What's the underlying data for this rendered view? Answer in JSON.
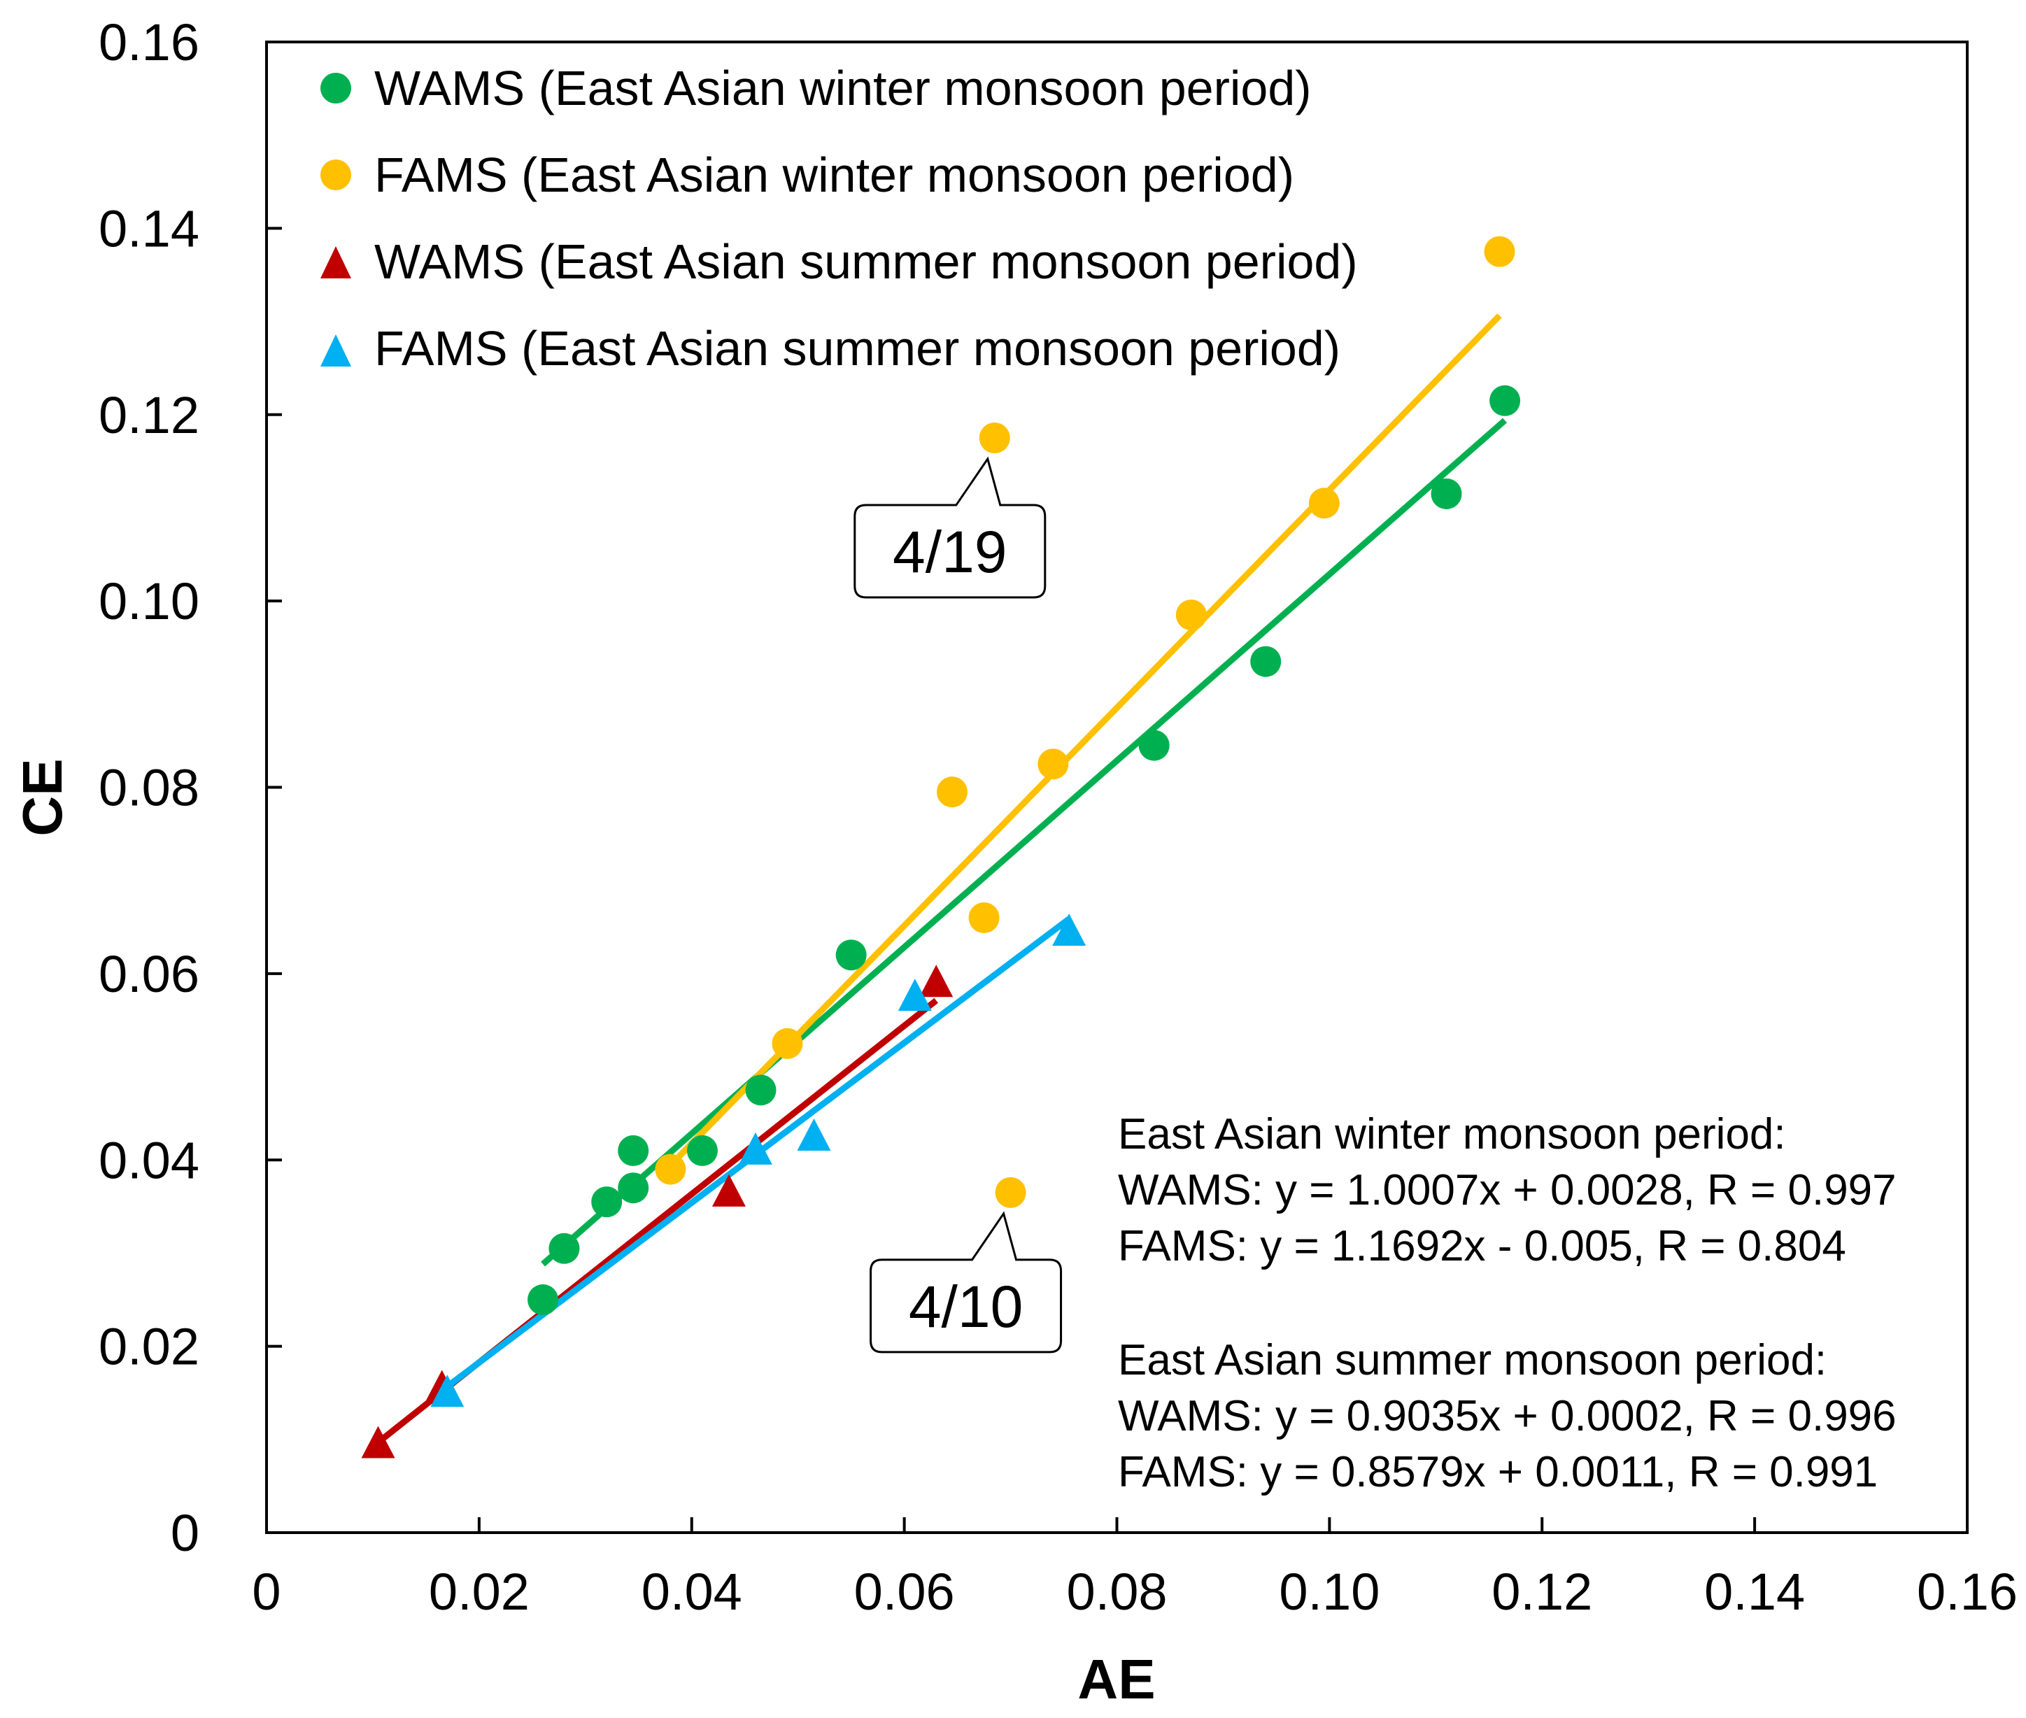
{
  "chart_data": {
    "type": "scatter",
    "title": "",
    "xlabel": "AE",
    "ylabel": "CE",
    "xlim": [
      0,
      0.16
    ],
    "ylim": [
      0,
      0.16
    ],
    "xticks": [
      "0",
      "0.02",
      "0.04",
      "0.06",
      "0.08",
      "0.10",
      "0.12",
      "0.14",
      "0.16"
    ],
    "yticks": [
      "0",
      "0.02",
      "0.04",
      "0.06",
      "0.08",
      "0.10",
      "0.12",
      "0.14",
      "0.16"
    ],
    "grid": false,
    "legend_position": "top-left",
    "series": [
      {
        "name": "WAMS (East Asian winter monsoon period)",
        "marker": "circle",
        "color": "#00B050",
        "points": [
          [
            0.026,
            0.025
          ],
          [
            0.028,
            0.0305
          ],
          [
            0.032,
            0.0355
          ],
          [
            0.0345,
            0.037
          ],
          [
            0.0345,
            0.041
          ],
          [
            0.041,
            0.041
          ],
          [
            0.0465,
            0.0475
          ],
          [
            0.055,
            0.062
          ],
          [
            0.0835,
            0.0845
          ],
          [
            0.094,
            0.0935
          ],
          [
            0.111,
            0.1115
          ],
          [
            0.1165,
            0.1215
          ]
        ],
        "fit": {
          "slope": 1.0007,
          "intercept": 0.0028,
          "x_range": [
            0.026,
            0.1165
          ]
        }
      },
      {
        "name": "FAMS (East Asian winter monsoon period)",
        "marker": "circle",
        "color": "#FFC000",
        "points": [
          [
            0.038,
            0.039
          ],
          [
            0.049,
            0.0525
          ],
          [
            0.0645,
            0.0795
          ],
          [
            0.0675,
            0.066
          ],
          [
            0.0685,
            0.1175
          ],
          [
            0.07,
            0.0365
          ],
          [
            0.074,
            0.0825
          ],
          [
            0.087,
            0.0985
          ],
          [
            0.0995,
            0.1105
          ],
          [
            0.116,
            0.1375
          ]
        ],
        "fit": {
          "slope": 1.1692,
          "intercept": -0.005,
          "x_range": [
            0.038,
            0.116
          ]
        }
      },
      {
        "name": "WAMS (East Asian summer monsoon period)",
        "marker": "triangle",
        "color": "#C00000",
        "points": [
          [
            0.0105,
            0.0095
          ],
          [
            0.0165,
            0.0155
          ],
          [
            0.0435,
            0.0365
          ],
          [
            0.063,
            0.059
          ]
        ],
        "fit": {
          "slope": 0.9035,
          "intercept": 0.0002,
          "x_range": [
            0.0105,
            0.063
          ]
        }
      },
      {
        "name": "FAMS (East Asian summer monsoon period)",
        "marker": "triangle",
        "color": "#00B0F0",
        "points": [
          [
            0.017,
            0.015
          ],
          [
            0.046,
            0.041
          ],
          [
            0.0515,
            0.0425
          ],
          [
            0.061,
            0.0575
          ],
          [
            0.0755,
            0.0645
          ]
        ],
        "fit": {
          "slope": 0.8579,
          "intercept": 0.0011,
          "x_range": [
            0.017,
            0.0755
          ]
        }
      }
    ],
    "callouts": [
      {
        "label": "4/19",
        "point": [
          0.0685,
          0.1175
        ]
      },
      {
        "label": "4/10",
        "point": [
          0.07,
          0.0365
        ]
      }
    ],
    "equations": {
      "winter_header": "East Asian winter monsoon period:",
      "winter_wams": "WAMS: y = 1.0007x + 0.0028, R = 0.997",
      "winter_fams": "FAMS: y = 1.1692x - 0.005, R = 0.804",
      "summer_header": "East Asian summer monsoon period:",
      "summer_wams": "WAMS: y = 0.9035x + 0.0002, R = 0.996",
      "summer_fams": "FAMS: y = 0.8579x + 0.0011, R = 0.991"
    }
  }
}
